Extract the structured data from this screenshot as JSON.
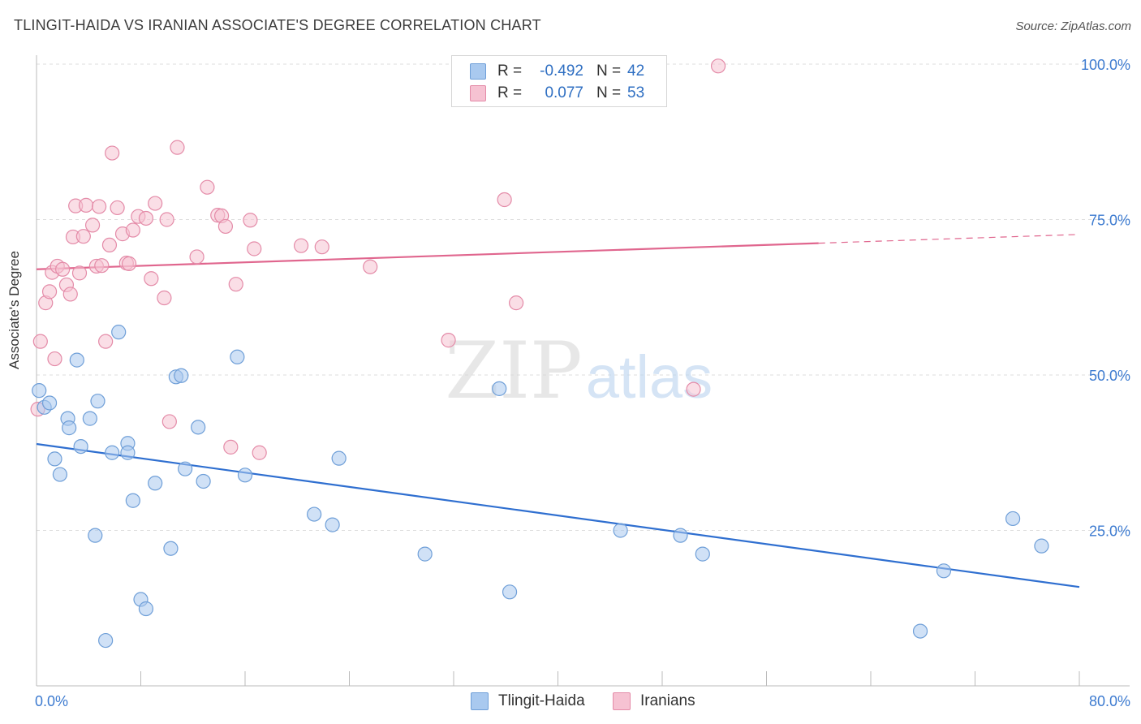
{
  "header": {
    "title": "TLINGIT-HAIDA VS IRANIAN ASSOCIATE'S DEGREE CORRELATION CHART",
    "source": "Source: ZipAtlas.com"
  },
  "watermark": {
    "zip": "ZIP",
    "atlas": "atlas"
  },
  "legend": {
    "r_label": "R =",
    "n_label": "N =",
    "rows": [
      {
        "series": "Tlingit-Haida",
        "r": "-0.492",
        "n": "42",
        "color": "#a9c9ef",
        "border": "#6f9fd8"
      },
      {
        "series": "Iranians",
        "r": "0.077",
        "n": "53",
        "color": "#f6c2d2",
        "border": "#e48ba8"
      }
    ]
  },
  "chart_data": {
    "type": "scatter",
    "title": "TLINGIT-HAIDA VS IRANIAN ASSOCIATE'S DEGREE CORRELATION CHART",
    "ylabel": "Associate's Degree",
    "xlim": [
      0,
      80
    ],
    "ylim": [
      0,
      100
    ],
    "x_tick_labels": [
      "0.0%",
      "80.0%"
    ],
    "y_ticks": [
      25,
      50,
      75,
      100
    ],
    "y_tick_labels": [
      "25.0%",
      "50.0%",
      "75.0%",
      "100.0%"
    ],
    "grid": true,
    "legend_position": "top-center",
    "series": [
      {
        "name": "Tlingit-Haida",
        "color": "#6f9fd8",
        "fill": "#a9c9ef",
        "line_color": "#2f6fd0",
        "trend": {
          "x": [
            0,
            80
          ],
          "y": [
            38.9,
            15.9
          ],
          "dashed_from_x": null
        },
        "points": [
          [
            0.2,
            47.5
          ],
          [
            0.6,
            44.8
          ],
          [
            1.0,
            45.5
          ],
          [
            2.4,
            43.0
          ],
          [
            3.1,
            52.4
          ],
          [
            2.5,
            41.5
          ],
          [
            3.4,
            38.5
          ],
          [
            1.4,
            36.5
          ],
          [
            1.8,
            34.0
          ],
          [
            4.1,
            43.0
          ],
          [
            4.7,
            45.8
          ],
          [
            5.8,
            37.5
          ],
          [
            6.3,
            56.9
          ],
          [
            7.0,
            39.0
          ],
          [
            7.0,
            37.5
          ],
          [
            7.4,
            29.8
          ],
          [
            9.1,
            32.6
          ],
          [
            10.7,
            49.7
          ],
          [
            11.1,
            49.9
          ],
          [
            11.4,
            34.9
          ],
          [
            12.4,
            41.6
          ],
          [
            12.8,
            32.9
          ],
          [
            15.4,
            52.9
          ],
          [
            16.0,
            33.9
          ],
          [
            4.5,
            24.2
          ],
          [
            10.3,
            22.1
          ],
          [
            8.0,
            13.9
          ],
          [
            8.4,
            12.4
          ],
          [
            5.3,
            7.3
          ],
          [
            21.3,
            27.6
          ],
          [
            22.7,
            25.9
          ],
          [
            23.2,
            36.6
          ],
          [
            29.8,
            21.2
          ],
          [
            35.5,
            47.8
          ],
          [
            36.3,
            15.1
          ],
          [
            44.8,
            25.0
          ],
          [
            49.4,
            24.2
          ],
          [
            51.1,
            21.2
          ],
          [
            67.8,
            8.8
          ],
          [
            69.6,
            18.5
          ],
          [
            74.9,
            26.9
          ],
          [
            77.1,
            22.5
          ]
        ]
      },
      {
        "name": "Iranians",
        "color": "#e48ba8",
        "fill": "#f6c2d2",
        "line_color": "#e0668e",
        "trend": {
          "x": [
            0,
            80
          ],
          "y": [
            67.0,
            72.6
          ],
          "dashed_from_x": 60.0
        },
        "points": [
          [
            0.1,
            44.5
          ],
          [
            0.3,
            55.4
          ],
          [
            0.7,
            61.6
          ],
          [
            1.0,
            63.4
          ],
          [
            1.2,
            66.5
          ],
          [
            1.4,
            52.6
          ],
          [
            1.6,
            67.5
          ],
          [
            2.0,
            67.0
          ],
          [
            2.3,
            64.5
          ],
          [
            2.6,
            63.0
          ],
          [
            2.8,
            72.2
          ],
          [
            3.0,
            77.2
          ],
          [
            3.3,
            66.4
          ],
          [
            3.6,
            72.3
          ],
          [
            3.8,
            77.3
          ],
          [
            4.3,
            74.1
          ],
          [
            4.6,
            67.5
          ],
          [
            4.8,
            77.1
          ],
          [
            5.0,
            67.6
          ],
          [
            5.3,
            55.4
          ],
          [
            5.6,
            70.9
          ],
          [
            5.8,
            85.7
          ],
          [
            6.2,
            76.9
          ],
          [
            6.6,
            72.7
          ],
          [
            6.9,
            68.0
          ],
          [
            7.1,
            67.9
          ],
          [
            7.4,
            73.3
          ],
          [
            7.8,
            75.5
          ],
          [
            8.4,
            75.2
          ],
          [
            8.8,
            65.5
          ],
          [
            9.1,
            77.6
          ],
          [
            9.8,
            62.4
          ],
          [
            10.0,
            75.0
          ],
          [
            10.2,
            42.5
          ],
          [
            10.8,
            86.6
          ],
          [
            12.3,
            69.0
          ],
          [
            13.1,
            80.2
          ],
          [
            13.9,
            75.7
          ],
          [
            14.2,
            75.6
          ],
          [
            14.5,
            73.9
          ],
          [
            14.9,
            38.4
          ],
          [
            15.3,
            64.6
          ],
          [
            16.4,
            74.9
          ],
          [
            16.7,
            70.3
          ],
          [
            17.1,
            37.5
          ],
          [
            20.3,
            70.8
          ],
          [
            21.9,
            70.6
          ],
          [
            25.6,
            67.4
          ],
          [
            31.6,
            55.6
          ],
          [
            35.9,
            78.2
          ],
          [
            36.8,
            61.6
          ],
          [
            50.4,
            47.7
          ],
          [
            52.3,
            99.7
          ]
        ]
      }
    ]
  }
}
